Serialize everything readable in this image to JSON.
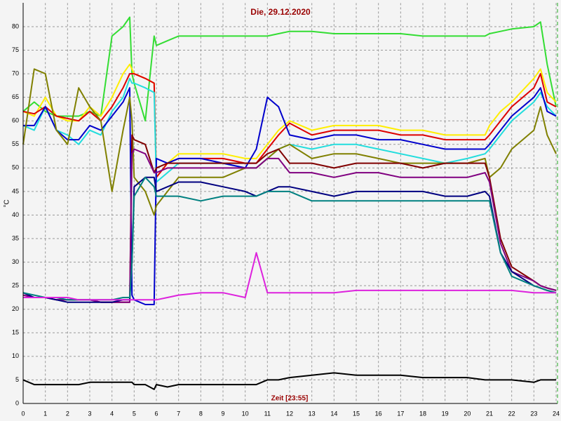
{
  "chart_data": {
    "type": "line",
    "title": "Die, 29.12.2020",
    "ylabel": "°C",
    "xlabel": "Zeit [23:55]",
    "xlim": [
      0,
      24
    ],
    "ylim": [
      0,
      85
    ],
    "xticks": [
      0,
      1,
      2,
      3,
      4,
      5,
      6,
      7,
      8,
      9,
      10,
      11,
      12,
      13,
      14,
      15,
      16,
      17,
      18,
      19,
      20,
      21,
      22,
      23,
      24
    ],
    "yticks": [
      0,
      5,
      10,
      15,
      20,
      25,
      30,
      35,
      40,
      45,
      50,
      55,
      60,
      65,
      70,
      75,
      80
    ],
    "grid": true,
    "x": [
      0,
      0.5,
      1,
      1.5,
      2,
      2.5,
      3,
      3.5,
      4,
      4.5,
      4.8,
      4.9,
      5,
      5.5,
      5.9,
      6,
      6.5,
      7,
      8,
      9,
      10,
      10.5,
      11,
      11.5,
      12,
      13,
      14,
      15,
      16,
      17,
      18,
      19,
      20,
      20.8,
      21,
      21.5,
      22,
      23,
      23.3,
      23.6,
      24
    ],
    "series": [
      {
        "color": "#33dd33",
        "values": [
          62,
          64,
          62,
          61,
          61,
          61,
          62,
          61,
          78,
          80,
          82,
          70,
          68,
          60,
          78,
          76,
          77,
          78,
          78,
          78,
          78,
          78,
          78,
          78.5,
          79,
          79,
          78.5,
          78.5,
          78.5,
          78.5,
          78,
          78,
          78,
          78,
          78.5,
          79,
          79.5,
          80,
          81,
          72,
          63
        ]
      },
      {
        "color": "#ffee00",
        "values": [
          62,
          61,
          65,
          61,
          60,
          60,
          63,
          61,
          65,
          70,
          72,
          71,
          70,
          69,
          68,
          48,
          51,
          53,
          53,
          53,
          52,
          52,
          55,
          58,
          60,
          58,
          59,
          59,
          59,
          58,
          58,
          57,
          57,
          57,
          59,
          62,
          64,
          69,
          71,
          66,
          64
        ]
      },
      {
        "color": "#dd0000",
        "values": [
          62,
          61.5,
          63,
          61,
          60.5,
          60,
          62,
          60,
          63,
          67,
          70,
          70,
          70,
          69,
          68,
          48,
          51,
          52,
          52,
          52,
          51,
          51,
          54,
          57,
          59.5,
          57,
          58,
          58,
          58,
          57,
          57,
          56,
          56,
          56,
          57,
          60,
          63,
          67,
          70,
          64,
          63
        ]
      },
      {
        "color": "#22dddd",
        "values": [
          59,
          58,
          63,
          58,
          57,
          55,
          58,
          57,
          62,
          65,
          69,
          68,
          68,
          67,
          66,
          47,
          49,
          51,
          51,
          51,
          50,
          50,
          52,
          54,
          55,
          54,
          55,
          55,
          54,
          53,
          52,
          51,
          52,
          53,
          54,
          57,
          60,
          64,
          66,
          63,
          61
        ]
      },
      {
        "color": "#0000cc",
        "values": [
          59,
          59,
          63,
          58,
          56,
          56,
          59,
          58,
          61,
          64,
          67,
          23,
          22,
          21,
          21,
          52,
          51,
          52,
          52,
          51,
          50,
          54,
          65,
          63,
          57,
          56,
          57,
          57,
          56,
          56,
          55,
          54,
          54,
          54,
          55,
          58,
          61,
          65,
          67,
          62,
          61
        ]
      },
      {
        "color": "#808000",
        "values": [
          55,
          71,
          70,
          58,
          55,
          67,
          63,
          60,
          45,
          58,
          65,
          60,
          48,
          45,
          40,
          42,
          45,
          48,
          48,
          48,
          50,
          50,
          52,
          54,
          55,
          52,
          53,
          53,
          52,
          51,
          51,
          51,
          51,
          52,
          48,
          50,
          54,
          58,
          63,
          57,
          53
        ]
      },
      {
        "color": "#800000",
        "values": [
          23,
          22.5,
          22.5,
          22,
          22,
          22,
          22,
          21.5,
          21.5,
          21.5,
          21.5,
          57,
          56,
          55,
          49,
          50,
          51,
          51,
          51,
          51,
          51,
          51,
          53,
          54,
          51,
          51,
          50,
          51,
          51,
          51,
          50,
          51,
          51,
          51,
          48,
          35,
          29,
          26,
          25,
          24.5,
          24
        ]
      },
      {
        "color": "#800080",
        "values": [
          23,
          22.5,
          22.5,
          22,
          22,
          22,
          22,
          21.5,
          21.5,
          21.5,
          21.5,
          53,
          54,
          53,
          49,
          49,
          50,
          50,
          50,
          50,
          50,
          50,
          52,
          52,
          49,
          49,
          48,
          49,
          49,
          48,
          48,
          48,
          48,
          49,
          47,
          34,
          28,
          26,
          25,
          24.5,
          24
        ]
      },
      {
        "color": "#000080",
        "values": [
          23.5,
          22.5,
          22.5,
          22,
          21.5,
          21.5,
          21.5,
          21.5,
          21.5,
          22,
          22,
          30,
          46,
          48,
          48,
          45,
          46,
          47,
          47,
          46,
          45,
          44,
          45,
          46,
          46,
          45,
          44,
          45,
          45,
          45,
          45,
          44,
          44,
          45,
          44,
          32,
          28,
          25,
          24.5,
          24,
          23.5
        ]
      },
      {
        "color": "#008080",
        "values": [
          23.5,
          23,
          22.5,
          22.5,
          22,
          22,
          22,
          22,
          22,
          22.5,
          22.5,
          30,
          44,
          48,
          46,
          44,
          44,
          44,
          43,
          44,
          44,
          44,
          45,
          45,
          45,
          43,
          43,
          43,
          43,
          43,
          43,
          43,
          43,
          43,
          43,
          32,
          27,
          25,
          24.5,
          24,
          23.5
        ]
      },
      {
        "color": "#dd22dd",
        "values": [
          22.5,
          22.5,
          22.5,
          22.5,
          22.5,
          22,
          22,
          22,
          22,
          22,
          22,
          22,
          22,
          22,
          22,
          22,
          22.5,
          23,
          23.5,
          23.5,
          22.5,
          32,
          23.5,
          23.5,
          23.5,
          23.5,
          23.5,
          24,
          24,
          24,
          24,
          24,
          24,
          24,
          24,
          24,
          24,
          23.5,
          23.5,
          23.5,
          23.5
        ]
      },
      {
        "color": "#000000",
        "values": [
          5,
          4,
          4,
          4,
          4,
          4,
          4.5,
          4.5,
          4.5,
          4.5,
          4.5,
          4.5,
          4,
          4,
          3,
          4,
          3.5,
          4,
          4,
          4,
          4,
          4,
          5,
          5,
          5.5,
          6,
          6.5,
          6,
          6,
          6,
          5.5,
          5.5,
          5.5,
          5,
          5,
          5,
          5,
          4.5,
          5,
          5,
          5
        ]
      }
    ]
  }
}
